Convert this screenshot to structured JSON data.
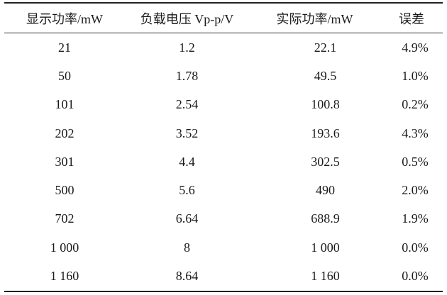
{
  "table": {
    "headers": [
      "显示功率/mW",
      "负载电压 Vp-p/V",
      "实际功率/mW",
      "误差"
    ],
    "rows": [
      [
        "21",
        "1.2",
        "22.1",
        "4.9%"
      ],
      [
        "50",
        "1.78",
        "49.5",
        "1.0%"
      ],
      [
        "101",
        "2.54",
        "100.8",
        "0.2%"
      ],
      [
        "202",
        "3.52",
        "193.6",
        "4.3%"
      ],
      [
        "301",
        "4.4",
        "302.5",
        "0.5%"
      ],
      [
        "500",
        "5.6",
        "490",
        "2.0%"
      ],
      [
        "702",
        "6.64",
        "688.9",
        "1.9%"
      ],
      [
        "1 000",
        "8",
        "1 000",
        "0.0%"
      ],
      [
        "1 160",
        "8.64",
        "1 160",
        "0.0%"
      ]
    ]
  }
}
